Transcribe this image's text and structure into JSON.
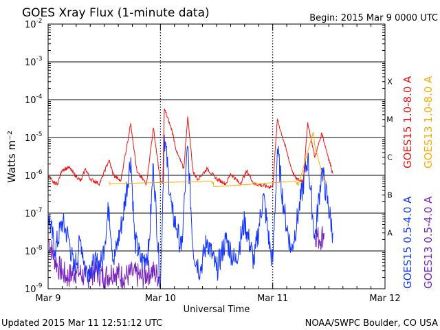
{
  "header": {
    "title": "GOES Xray Flux (1-minute data)",
    "begin": "Begin:  2015 Mar 9 0000 UTC"
  },
  "footer": {
    "updated": "Updated 2015 Mar 11 12:51:12 UTC",
    "source": "NOAA/SWPC Boulder, CO USA"
  },
  "colors": {
    "goes15_long": "#ee1111",
    "goes13_long": "#ffaa00",
    "goes15_short": "#1133ff",
    "goes13_short": "#7722bb",
    "grid": "#000000"
  },
  "chart_data": {
    "type": "line",
    "title": "GOES Xray Flux (1-minute data)",
    "xlabel": "Universal Time",
    "ylabel": "Watts m⁻²",
    "y_scale": "log",
    "ylim": [
      1e-09,
      0.01
    ],
    "xlim": [
      "2015-03-09T00:00",
      "2015-03-12T00:00"
    ],
    "x_tick_labels": [
      "Mar 9",
      "Mar 10",
      "Mar 11",
      "Mar 12"
    ],
    "y_tick_labels": [
      {
        "base": "10",
        "exp": "-9"
      },
      {
        "base": "10",
        "exp": "-8"
      },
      {
        "base": "10",
        "exp": "-7"
      },
      {
        "base": "10",
        "exp": "-6"
      },
      {
        "base": "10",
        "exp": "-5"
      },
      {
        "base": "10",
        "exp": "-4"
      },
      {
        "base": "10",
        "exp": "-3"
      },
      {
        "base": "10",
        "exp": "-2"
      }
    ],
    "flare_classes": [
      "A",
      "B",
      "C",
      "M",
      "X"
    ],
    "series": [
      {
        "name": "GOES15 1.0-8.0 A",
        "color": "#ee1111",
        "points": [
          [
            "2015-03-09T00:00",
            1e-06
          ],
          [
            "2015-03-09T01:00",
            6.5e-07
          ],
          [
            "2015-03-09T02:00",
            6e-07
          ],
          [
            "2015-03-09T03:00",
            1.4e-06
          ],
          [
            "2015-03-09T04:30",
            1.6e-06
          ],
          [
            "2015-03-09T05:30",
            1.1e-06
          ],
          [
            "2015-03-09T07:00",
            7e-07
          ],
          [
            "2015-03-09T08:00",
            1.5e-06
          ],
          [
            "2015-03-09T09:00",
            8e-07
          ],
          [
            "2015-03-09T11:00",
            6e-07
          ],
          [
            "2015-03-09T13:00",
            2.5e-06
          ],
          [
            "2015-03-09T14:00",
            1e-06
          ],
          [
            "2015-03-09T15:30",
            7e-07
          ],
          [
            "2015-03-09T17:40",
            2.4e-05
          ],
          [
            "2015-03-09T19:00",
            1.2e-06
          ],
          [
            "2015-03-09T21:00",
            6e-07
          ],
          [
            "2015-03-09T22:30",
            1.8e-05
          ],
          [
            "2015-03-10T00:00",
            7e-07
          ],
          [
            "2015-03-10T00:30",
            6e-07
          ],
          [
            "2015-03-10T00:50",
            5.8e-05
          ],
          [
            "2015-03-10T02:30",
            1.5e-05
          ],
          [
            "2015-03-10T03:30",
            4e-06
          ],
          [
            "2015-03-10T05:00",
            1.5e-06
          ],
          [
            "2015-03-10T05:50",
            3.6e-05
          ],
          [
            "2015-03-10T07:00",
            1.2e-06
          ],
          [
            "2015-03-10T08:00",
            8e-07
          ],
          [
            "2015-03-10T10:00",
            1.5e-06
          ],
          [
            "2015-03-10T12:00",
            8e-07
          ],
          [
            "2015-03-10T14:00",
            6e-07
          ],
          [
            "2015-03-10T15:00",
            1.1e-06
          ],
          [
            "2015-03-10T17:00",
            6e-07
          ],
          [
            "2015-03-10T18:30",
            1.3e-06
          ],
          [
            "2015-03-10T20:00",
            6e-07
          ],
          [
            "2015-03-10T23:00",
            5e-07
          ],
          [
            "2015-03-11T00:00",
            5e-07
          ],
          [
            "2015-03-11T01:00",
            3e-05
          ],
          [
            "2015-03-11T02:30",
            7e-06
          ],
          [
            "2015-03-11T04:00",
            1.5e-06
          ],
          [
            "2015-03-11T05:00",
            8e-07
          ],
          [
            "2015-03-11T06:30",
            7e-07
          ],
          [
            "2015-03-11T07:30",
            2.5e-05
          ],
          [
            "2015-03-11T09:00",
            3e-06
          ],
          [
            "2015-03-11T10:30",
            1.3e-05
          ],
          [
            "2015-03-11T12:51",
            1.1e-06
          ]
        ]
      },
      {
        "name": "GOES13 1.0-8.0 A",
        "color": "#ffaa00",
        "points": [
          [
            "2015-03-09T13:00",
            7e-07
          ],
          [
            "2015-03-09T13:20",
            6e-07
          ],
          [
            "2015-03-10T11:00",
            7e-07
          ],
          [
            "2015-03-10T11:30",
            5e-07
          ],
          [
            "2015-03-11T05:00",
            7e-07
          ],
          [
            "2015-03-11T05:30",
            5.5e-07
          ],
          [
            "2015-03-11T08:40",
            1.4e-05
          ],
          [
            "2015-03-11T09:00",
            6e-06
          ],
          [
            "2015-03-11T11:00",
            7e-07
          ],
          [
            "2015-03-11T11:30",
            6e-07
          ]
        ]
      },
      {
        "name": "GOES15 0.5-4.0 A",
        "color": "#1133ff",
        "points": [
          [
            "2015-03-09T00:00",
            1e-07
          ],
          [
            "2015-03-09T01:30",
            1e-08
          ],
          [
            "2015-03-09T03:00",
            6e-08
          ],
          [
            "2015-03-09T04:30",
            2e-08
          ],
          [
            "2015-03-09T05:30",
            3e-09
          ],
          [
            "2015-03-09T07:00",
            2e-08
          ],
          [
            "2015-03-09T08:00",
            3e-09
          ],
          [
            "2015-03-09T09:30",
            4e-09
          ],
          [
            "2015-03-09T11:30",
            5e-09
          ],
          [
            "2015-03-09T13:00",
            1.5e-07
          ],
          [
            "2015-03-09T14:00",
            5e-09
          ],
          [
            "2015-03-09T16:00",
            8e-08
          ],
          [
            "2015-03-09T17:40",
            3e-06
          ],
          [
            "2015-03-09T18:30",
            2e-08
          ],
          [
            "2015-03-09T20:00",
            5e-09
          ],
          [
            "2015-03-09T21:30",
            1e-08
          ],
          [
            "2015-03-09T22:30",
            2e-06
          ],
          [
            "2015-03-10T00:00",
            1e-09
          ],
          [
            "2015-03-10T00:50",
            1.2e-05
          ],
          [
            "2015-03-10T02:30",
            1e-07
          ],
          [
            "2015-03-10T03:30",
            4e-08
          ],
          [
            "2015-03-10T04:30",
            1e-08
          ],
          [
            "2015-03-10T05:50",
            6e-06
          ],
          [
            "2015-03-10T07:00",
            1e-08
          ],
          [
            "2015-03-10T08:30",
            3e-09
          ],
          [
            "2015-03-10T10:00",
            2e-08
          ],
          [
            "2015-03-10T12:00",
            3e-09
          ],
          [
            "2015-03-10T14:00",
            2e-08
          ],
          [
            "2015-03-10T16:00",
            5e-09
          ],
          [
            "2015-03-10T18:00",
            6e-08
          ],
          [
            "2015-03-10T20:00",
            5e-09
          ],
          [
            "2015-03-10T22:00",
            3e-07
          ],
          [
            "2015-03-10T23:30",
            1e-08
          ],
          [
            "2015-03-11T00:00",
            5e-09
          ],
          [
            "2015-03-11T01:00",
            5e-06
          ],
          [
            "2015-03-11T02:30",
            1e-07
          ],
          [
            "2015-03-11T04:00",
            1e-08
          ],
          [
            "2015-03-11T05:30",
            1e-07
          ],
          [
            "2015-03-11T07:30",
            3e-06
          ],
          [
            "2015-03-11T09:00",
            2e-08
          ],
          [
            "2015-03-11T10:30",
            1.5e-06
          ],
          [
            "2015-03-11T12:51",
            3e-08
          ]
        ]
      },
      {
        "name": "GOES13 0.5-4.0 A",
        "color": "#7722bb",
        "points": [
          [
            "2015-03-09T00:00",
            2e-08
          ],
          [
            "2015-03-09T02:00",
            4e-09
          ],
          [
            "2015-03-09T04:00",
            2e-09
          ],
          [
            "2015-03-09T06:00",
            3e-09
          ],
          [
            "2015-03-09T08:00",
            2e-09
          ],
          [
            "2015-03-09T10:00",
            3e-09
          ],
          [
            "2015-03-09T12:00",
            2e-09
          ],
          [
            "2015-03-09T14:00",
            3e-09
          ],
          [
            "2015-03-09T16:00",
            2e-09
          ],
          [
            "2015-03-09T18:00",
            2.5e-09
          ],
          [
            "2015-03-09T20:00",
            2e-09
          ],
          [
            "2015-03-09T22:00",
            3e-09
          ],
          [
            "2015-03-10T00:00",
            2e-09
          ],
          [
            "2015-03-11T09:00",
            3e-08
          ],
          [
            "2015-03-11T10:00",
            2e-08
          ],
          [
            "2015-03-11T11:00",
            3e-08
          ]
        ]
      }
    ]
  }
}
